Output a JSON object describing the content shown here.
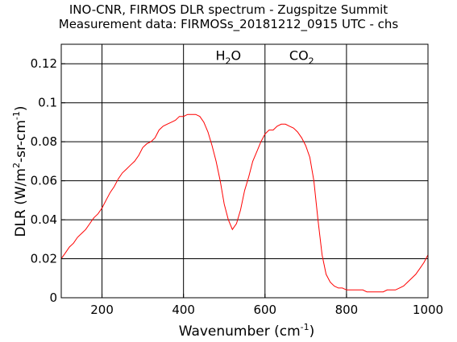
{
  "chart_data": {
    "type": "line",
    "title": "INO-CNR, FIRMOS DLR spectrum - Zugspitze Summit",
    "subtitle": "Measurement data: FIRMOSs_20181212_0915 UTC - chs",
    "xlabel": {
      "text": "Wavenumber (cm",
      "sup": "-1",
      "tail": ")"
    },
    "ylabel": {
      "text": "DLR (W/m",
      "sup1": "2",
      "mid": "-sr-cm",
      "sup2": "-1",
      "tail": ")"
    },
    "xlim": [
      100,
      1000
    ],
    "ylim": [
      0,
      0.13
    ],
    "xticks": [
      200,
      400,
      600,
      800,
      1000
    ],
    "xtick_labels": [
      "200",
      "400",
      "600",
      "800",
      "1000"
    ],
    "yticks": [
      0,
      0.02,
      0.04,
      0.06,
      0.08,
      0.1,
      0.12
    ],
    "ytick_labels": [
      "0",
      "0.02",
      "0.04",
      "0.06",
      "0.08",
      "0.1",
      "0.12"
    ],
    "grid": true,
    "line_color": "#ff0000",
    "annotations": [
      {
        "base": "H",
        "sub": "2",
        "tail": "O",
        "x": 510,
        "y": 0.122
      },
      {
        "base": "CO",
        "sub": "2",
        "tail": "",
        "x": 690,
        "y": 0.122
      }
    ],
    "series": [
      {
        "x": [
          100,
          110,
          120,
          130,
          140,
          150,
          160,
          170,
          180,
          190,
          200,
          210,
          220,
          230,
          240,
          250,
          260,
          270,
          280,
          290,
          300,
          310,
          320,
          330,
          340,
          350,
          360,
          370,
          380,
          390,
          400,
          410,
          420,
          430,
          440,
          450,
          460,
          470,
          480,
          490,
          500,
          510,
          520,
          530,
          540,
          550,
          560,
          570,
          580,
          590,
          600,
          610,
          620,
          630,
          640,
          650,
          660,
          670,
          680,
          690,
          700,
          710,
          720,
          730,
          740,
          750,
          760,
          770,
          780,
          790,
          800,
          810,
          820,
          830,
          840,
          850,
          860,
          870,
          880,
          890,
          900,
          910,
          920,
          930,
          940,
          950,
          960,
          970,
          980,
          990,
          1000
        ],
        "y": [
          0.02,
          0.023,
          0.026,
          0.028,
          0.031,
          0.033,
          0.035,
          0.038,
          0.041,
          0.043,
          0.046,
          0.05,
          0.054,
          0.057,
          0.061,
          0.064,
          0.066,
          0.068,
          0.07,
          0.073,
          0.077,
          0.079,
          0.08,
          0.082,
          0.086,
          0.088,
          0.089,
          0.09,
          0.091,
          0.093,
          0.093,
          0.094,
          0.094,
          0.094,
          0.093,
          0.09,
          0.085,
          0.078,
          0.07,
          0.06,
          0.048,
          0.04,
          0.035,
          0.038,
          0.045,
          0.055,
          0.062,
          0.07,
          0.075,
          0.08,
          0.084,
          0.086,
          0.086,
          0.088,
          0.089,
          0.089,
          0.088,
          0.087,
          0.085,
          0.082,
          0.078,
          0.072,
          0.06,
          0.04,
          0.022,
          0.012,
          0.008,
          0.006,
          0.005,
          0.005,
          0.004,
          0.004,
          0.004,
          0.004,
          0.004,
          0.003,
          0.003,
          0.003,
          0.003,
          0.003,
          0.004,
          0.004,
          0.004,
          0.005,
          0.006,
          0.008,
          0.01,
          0.012,
          0.015,
          0.018,
          0.022
        ]
      }
    ]
  }
}
